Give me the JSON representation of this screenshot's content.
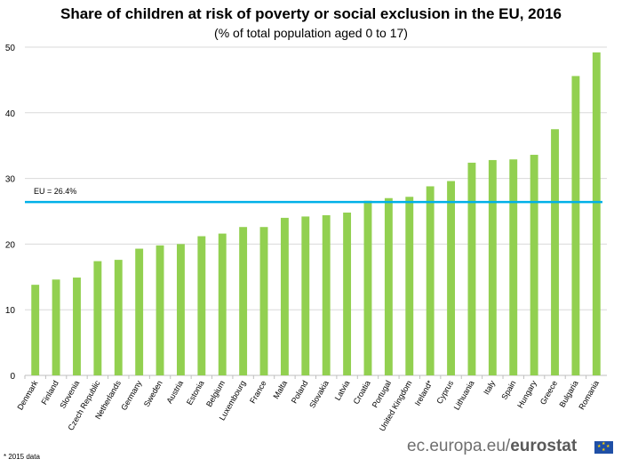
{
  "chart_data": {
    "type": "bar",
    "title": "Share of children at risk of poverty or social exclusion in the EU, 2016",
    "subtitle": "(% of total population aged 0 to 17)",
    "categories": [
      "Denmark",
      "Finland",
      "Slovenia",
      "Czech Republic",
      "Netherlands",
      "Germany",
      "Sweden",
      "Austria",
      "Estonia",
      "Belgium",
      "Luxembourg",
      "France",
      "Malta",
      "Poland",
      "Slovakia",
      "Latvia",
      "Croatia",
      "Portugal",
      "United Kingdom",
      "Ireland*",
      "Cyprus",
      "Lithuania",
      "Italy",
      "Spain",
      "Hungary",
      "Greece",
      "Bulgaria",
      "Romania"
    ],
    "values": [
      13.8,
      14.6,
      14.9,
      17.4,
      17.6,
      19.3,
      19.8,
      20.0,
      21.2,
      21.6,
      22.6,
      22.6,
      24.0,
      24.2,
      24.4,
      24.8,
      26.6,
      27.0,
      27.2,
      28.8,
      29.6,
      32.4,
      32.8,
      32.9,
      33.6,
      37.5,
      45.6,
      49.2
    ],
    "ylim": [
      0,
      50
    ],
    "yticks": [
      "0",
      "10",
      "20",
      "30",
      "40",
      "50"
    ],
    "grid": true,
    "bar_color": "#92d050",
    "reference_line": {
      "value": 26.4,
      "label": "EU = 26.4%",
      "color": "#00b0e8"
    }
  },
  "footnote": "* 2015 data",
  "brand": {
    "prefix": "ec.europa.eu/",
    "name": "eurostat"
  }
}
